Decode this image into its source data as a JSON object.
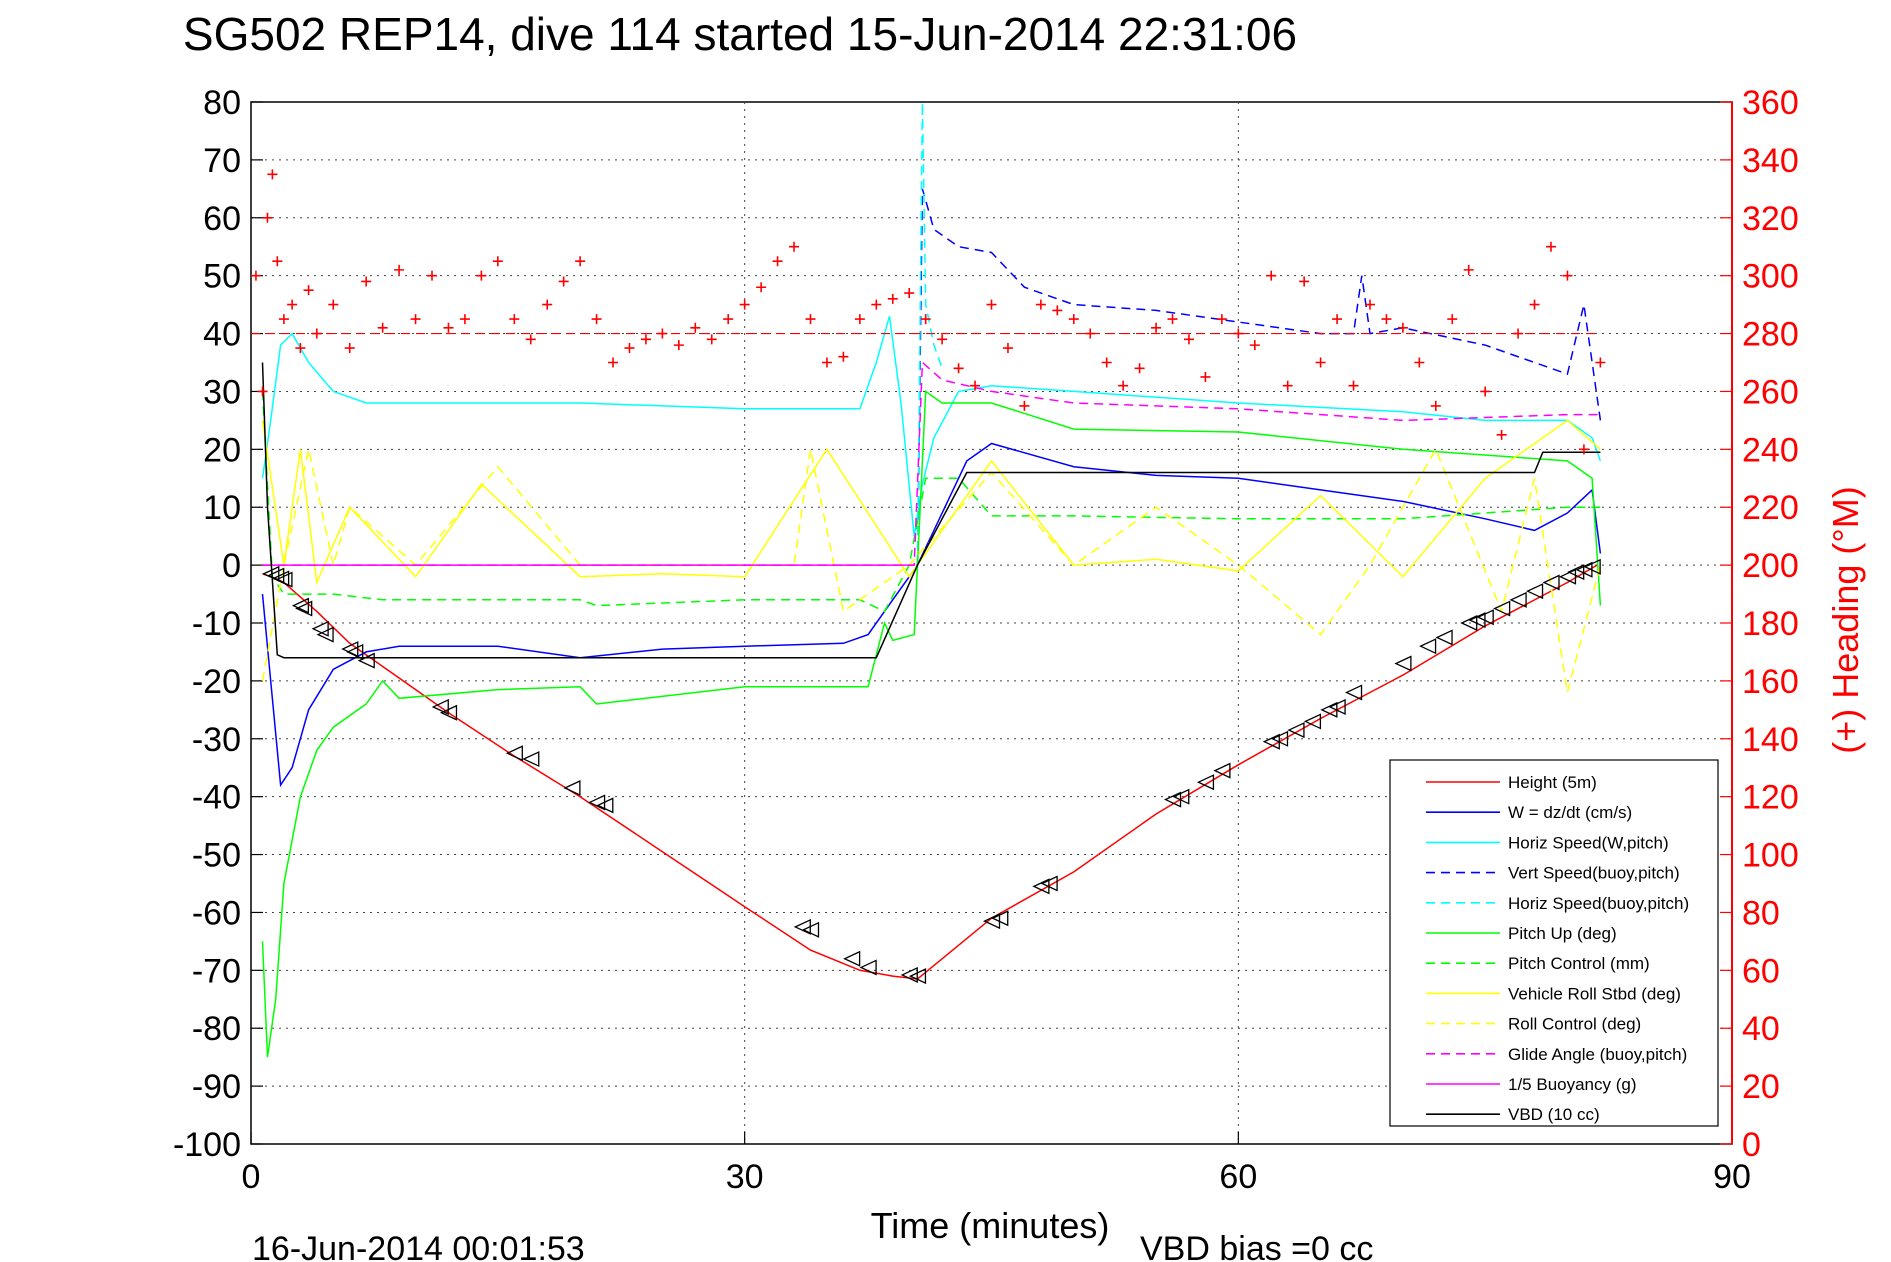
{
  "chart_data": {
    "type": "line",
    "title": "SG502 REP14, dive 114 started 15-Jun-2014 22:31:06",
    "xlabel": "Time (minutes)",
    "ylabel": "",
    "ylabel_right": "(+) Heading (°M)",
    "footer_left": "16-Jun-2014 00:01:53",
    "footer_right": "VBD bias =0 cc",
    "xlim": [
      0,
      90
    ],
    "ylim": [
      -100,
      80
    ],
    "ylim_right": [
      0,
      360
    ],
    "x_ticks": [
      0,
      30,
      60,
      90
    ],
    "y_ticks": [
      80,
      70,
      60,
      50,
      40,
      30,
      20,
      10,
      0,
      -10,
      -20,
      -30,
      -40,
      -50,
      -60,
      -70,
      -80,
      -90,
      -100
    ],
    "y_right_ticks": [
      360,
      340,
      320,
      300,
      280,
      260,
      240,
      220,
      200,
      180,
      160,
      140,
      120,
      100,
      80,
      60,
      40,
      20,
      0
    ],
    "grid": true,
    "legend_placement": "lower-right",
    "series": [
      {
        "name": "Height (5m)",
        "color": "#ff0000",
        "style": "solid",
        "x": [
          0.7,
          1.5,
          2.0,
          4.0,
          6.0,
          9.0,
          12.0,
          16.0,
          20.0,
          25.0,
          30.0,
          34.0,
          37.0,
          39.0,
          40.5,
          42.0,
          45.0,
          50.0,
          55.0,
          60.0,
          65.0,
          70.0,
          75.0,
          80.0,
          81.8
        ],
        "y": [
          -1.5,
          -2.3,
          -3.0,
          -8.0,
          -13.5,
          -19.5,
          -25.5,
          -33.0,
          -40.0,
          -49.5,
          -59.0,
          -66.5,
          -70.0,
          -71.0,
          -71.5,
          -68.0,
          -61.0,
          -53.0,
          -43.0,
          -34.5,
          -26.5,
          -19.0,
          -10.5,
          -3.0,
          0.0
        ]
      },
      {
        "name": "W = dz/dt (cm/s)",
        "color": "#0000ff",
        "style": "solid",
        "x": [
          0.7,
          1.2,
          1.8,
          2.5,
          3.5,
          5.0,
          7.0,
          9.0,
          15.0,
          20.0,
          25.0,
          30.0,
          36.0,
          37.5,
          38.5,
          40.5,
          41.5,
          42.5,
          43.5,
          45.0,
          50.0,
          55.0,
          60.0,
          65.0,
          70.0,
          75.0,
          78.0,
          80.0,
          81.5,
          82.0
        ],
        "y": [
          -5.0,
          -20.0,
          -38.0,
          -35.0,
          -25.0,
          -18.0,
          -15.0,
          -14.0,
          -14.0,
          -16.0,
          -14.5,
          -14.0,
          -13.5,
          -12.0,
          -8.0,
          0.0,
          6.0,
          12.0,
          18.0,
          21.0,
          17.0,
          15.5,
          15.0,
          13.0,
          11.0,
          8.0,
          6.0,
          9.0,
          13.0,
          2.0
        ]
      },
      {
        "name": "Horiz Speed(W,pitch)",
        "color": "#00ffff",
        "style": "solid",
        "x": [
          0.7,
          1.2,
          1.8,
          2.5,
          3.5,
          5.0,
          7.0,
          10.0,
          20.0,
          30.0,
          37.0,
          38.0,
          38.8,
          39.5,
          40.3,
          40.8,
          41.5,
          43.0,
          45.0,
          50.0,
          60.0,
          70.0,
          75.0,
          80.0,
          81.5,
          82.0
        ],
        "y": [
          15.0,
          25.0,
          38.0,
          40.0,
          35.0,
          30.0,
          28.0,
          28.0,
          28.0,
          27.0,
          27.0,
          35.0,
          43.0,
          28.0,
          5.0,
          14.0,
          22.0,
          30.0,
          31.0,
          30.0,
          28.0,
          26.5,
          25.0,
          25.0,
          22.0,
          18.0
        ]
      },
      {
        "name": "Vert Speed(buoy,pitch)",
        "color": "#0000ff",
        "style": "dashed",
        "x": [
          40.5,
          40.8,
          41.5,
          43.0,
          45.0,
          47.0,
          50.0,
          55.0,
          60.0,
          65.0,
          67.0,
          67.5,
          68.0,
          70.0,
          75.0,
          78.0,
          80.0,
          81.0,
          82.0
        ],
        "y": [
          0.0,
          65.0,
          58.0,
          55.0,
          54.0,
          48.0,
          45.0,
          44.0,
          42.0,
          40.0,
          40.0,
          50.0,
          40.0,
          41.0,
          38.0,
          35.0,
          33.0,
          45.0,
          25.0
        ]
      },
      {
        "name": "Horiz Speed(buoy,pitch)",
        "color": "#00ffff",
        "style": "dashed",
        "x": [
          40.5,
          40.8,
          41.0,
          41.5,
          42.0
        ],
        "y": [
          0.0,
          80.0,
          45.0,
          38.0,
          34.0
        ]
      },
      {
        "name": "Pitch Up (deg)",
        "color": "#00ff00",
        "style": "solid",
        "x": [
          0.7,
          1.0,
          1.5,
          2.0,
          3.0,
          4.0,
          5.0,
          7.0,
          8.0,
          9.0,
          15.0,
          20.0,
          21.0,
          30.0,
          37.5,
          38.5,
          39.0,
          40.3,
          41.0,
          42.0,
          45.0,
          50.0,
          60.0,
          70.0,
          80.0,
          81.5,
          82.0
        ],
        "y": [
          -65.0,
          -85.0,
          -75.0,
          -55.0,
          -40.0,
          -32.0,
          -28.0,
          -24.0,
          -20.0,
          -23.0,
          -21.5,
          -21.0,
          -24.0,
          -21.0,
          -21.0,
          -10.0,
          -13.0,
          -12.0,
          30.0,
          28.0,
          28.0,
          23.5,
          23.0,
          20.0,
          18.0,
          15.0,
          -7.0
        ]
      },
      {
        "name": "Pitch Control (mm)",
        "color": "#00ff00",
        "style": "dashed",
        "x": [
          0.7,
          1.3,
          2.0,
          5.0,
          8.0,
          20.0,
          21.0,
          30.0,
          37.0,
          38.5,
          40.0,
          41.0,
          43.0,
          45.0,
          50.0,
          60.0,
          70.0,
          80.0,
          82.0
        ],
        "y": [
          30.0,
          -2.0,
          -5.0,
          -5.0,
          -6.0,
          -6.0,
          -7.0,
          -6.0,
          -6.0,
          -8.0,
          0.0,
          15.0,
          15.0,
          8.5,
          8.5,
          8.0,
          8.0,
          10.0,
          10.0
        ]
      },
      {
        "name": "Vehicle Roll Stbd (deg)",
        "color": "#ffff00",
        "style": "solid",
        "x": [
          0.7,
          2.0,
          3.0,
          4.0,
          6.0,
          10.0,
          14.0,
          20.0,
          25.0,
          30.0,
          35.0,
          40.0,
          45.0,
          50.0,
          55.0,
          60.0,
          65.0,
          70.0,
          75.0,
          80.0,
          82.0
        ],
        "y": [
          25.0,
          0.0,
          20.0,
          -3.0,
          10.0,
          -2.0,
          14.0,
          -2.0,
          -1.5,
          -2.0,
          20.0,
          -2.0,
          18.0,
          0.0,
          1.0,
          -1.0,
          12.0,
          -2.0,
          15.0,
          25.0,
          20.0
        ]
      },
      {
        "name": "Roll Control (deg)",
        "color": "#ffff00",
        "style": "dashed",
        "x": [
          0.7,
          2.0,
          3.5,
          5.0,
          6.0,
          10.0,
          15.0,
          20.0,
          25.0,
          30.0,
          33.0,
          34.0,
          36.0,
          40.0,
          45.0,
          50.0,
          55.0,
          60.0,
          65.0,
          68.0,
          72.0,
          76.0,
          78.0,
          80.0,
          82.0
        ],
        "y": [
          -20.0,
          0.0,
          20.0,
          0.0,
          10.0,
          0.0,
          17.0,
          0.0,
          0.0,
          0.0,
          0.0,
          20.0,
          -8.0,
          0.0,
          16.0,
          0.0,
          10.0,
          0.0,
          -12.0,
          0.0,
          20.0,
          -8.0,
          15.0,
          -22.0,
          0.0
        ]
      },
      {
        "name": "Glide Angle (buoy,pitch)",
        "color": "#ff00ff",
        "style": "dashed",
        "x": [
          0.7,
          40.3,
          40.8,
          42.0,
          45.0,
          50.0,
          60.0,
          70.0,
          80.0,
          82.0
        ],
        "y": [
          0.0,
          0.0,
          35.0,
          32.0,
          30.0,
          28.0,
          27.0,
          25.0,
          26.0,
          26.0
        ]
      },
      {
        "name": "1/5 Buoyancy (g)",
        "color": "#ff00ff",
        "style": "solid",
        "x": [
          0.7,
          40.3
        ],
        "y": [
          0.0,
          0.0
        ]
      },
      {
        "name": "VBD (10 cc)",
        "color": "#000000",
        "style": "solid",
        "x": [
          0.7,
          1.0,
          1.6,
          2.0,
          37.5,
          38.0,
          40.5,
          42.0,
          43.5,
          60.0,
          78.0,
          78.5,
          82.0
        ],
        "y": [
          35.0,
          10.0,
          -15.5,
          -16.0,
          -16.0,
          -16.0,
          0.0,
          8.0,
          16.0,
          16.0,
          16.0,
          19.5,
          19.5
        ]
      },
      {
        "name": "(+) Heading",
        "color": "#ff0000",
        "style": "markers",
        "axis": "right",
        "x": [
          0.3,
          0.7,
          1.0,
          1.3,
          1.6,
          2.0,
          2.5,
          3.0,
          3.5,
          4.0,
          5.0,
          6.0,
          7.0,
          8.0,
          9.0,
          10.0,
          11.0,
          12.0,
          13.0,
          14.0,
          15.0,
          16.0,
          17.0,
          18.0,
          19.0,
          20.0,
          21.0,
          22.0,
          23.0,
          24.0,
          25.0,
          26.0,
          27.0,
          28.0,
          29.0,
          30.0,
          31.0,
          32.0,
          33.0,
          34.0,
          35.0,
          36.0,
          37.0,
          38.0,
          39.0,
          40.0,
          41.0,
          42.0,
          43.0,
          44.0,
          45.0,
          46.0,
          47.0,
          48.0,
          49.0,
          50.0,
          51.0,
          52.0,
          53.0,
          54.0,
          55.0,
          56.0,
          57.0,
          58.0,
          59.0,
          60.0,
          61.0,
          62.0,
          63.0,
          64.0,
          65.0,
          66.0,
          67.0,
          68.0,
          69.0,
          70.0,
          71.0,
          72.0,
          73.0,
          74.0,
          75.0,
          76.0,
          77.0,
          78.0,
          79.0,
          80.0,
          81.0,
          82.0
        ],
        "y": [
          300,
          260,
          320,
          335,
          305,
          285,
          290,
          275,
          295,
          280,
          290,
          275,
          298,
          282,
          302,
          285,
          300,
          282,
          285,
          300,
          305,
          285,
          278,
          290,
          298,
          305,
          285,
          270,
          275,
          278,
          280,
          276,
          282,
          278,
          285,
          290,
          296,
          305,
          310,
          285,
          270,
          272,
          285,
          290,
          292,
          294,
          285,
          278,
          268,
          262,
          290,
          275,
          255,
          290,
          288,
          285,
          280,
          270,
          262,
          268,
          282,
          285,
          278,
          265,
          285,
          280,
          276,
          300,
          262,
          298,
          270,
          285,
          262,
          290,
          285,
          282,
          270,
          255,
          285,
          302,
          260,
          245,
          280,
          290,
          310,
          300,
          240,
          270
        ]
      }
    ],
    "markers": {
      "name": "triangles",
      "color": "#000000",
      "x": [
        1.2,
        1.5,
        1.8,
        2.0,
        3.0,
        3.2,
        4.2,
        4.5,
        6.0,
        6.3,
        7.0,
        11.5,
        12.0,
        16.0,
        17.0,
        19.5,
        21.0,
        21.5,
        33.5,
        34.0,
        36.5,
        37.5,
        40.0,
        40.5,
        45.0,
        45.5,
        48.0,
        48.5,
        56.0,
        56.5,
        58.0,
        59.0,
        62.0,
        62.5,
        63.5,
        64.5,
        65.5,
        66.0,
        67.0,
        70.0,
        71.5,
        72.5,
        74.0,
        74.5,
        75.0,
        76.0,
        77.0,
        78.0,
        79.0,
        80.0,
        80.5,
        81.0,
        81.5
      ],
      "y": [
        -1.5,
        -1.8,
        -2.3,
        -2.5,
        -7.0,
        -7.5,
        -11.0,
        -12.0,
        -14.5,
        -15.0,
        -16.5,
        -24.5,
        -25.5,
        -32.5,
        -33.5,
        -38.5,
        -41.0,
        -41.5,
        -62.5,
        -63.0,
        -68.0,
        -69.5,
        -70.8,
        -71.0,
        -61.5,
        -61.0,
        -55.5,
        -55.0,
        -40.5,
        -40.0,
        -37.5,
        -35.5,
        -30.5,
        -30.0,
        -28.5,
        -27.0,
        -25.0,
        -24.5,
        -22.0,
        -17.0,
        -14.0,
        -12.5,
        -10.0,
        -9.5,
        -9.0,
        -7.5,
        -6.0,
        -4.5,
        -3.0,
        -2.0,
        -1.2,
        -0.8,
        -0.3
      ]
    }
  }
}
